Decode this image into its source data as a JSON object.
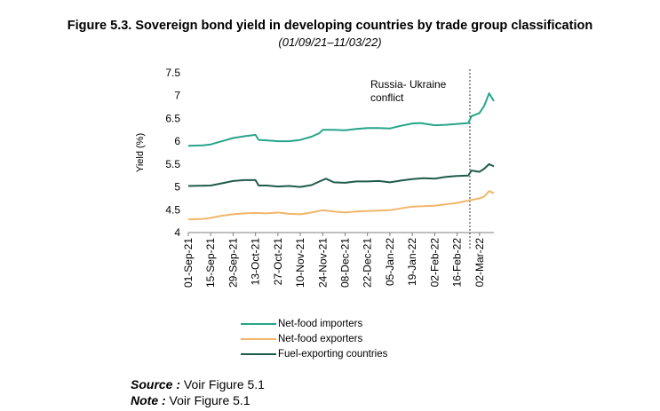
{
  "figure": {
    "title": "Figure 5.3.   Sovereign bond yield in developing countries by trade group classification",
    "subtitle": "(01/09/21–11/03/22)"
  },
  "chart_data": {
    "type": "line",
    "ylabel": "Yield (%)",
    "ylim": [
      4,
      7.5
    ],
    "yticks": [
      "4",
      "4.5",
      "5",
      "5.5",
      "6",
      "6.5",
      "7",
      "7.5"
    ],
    "xlim": [
      "2021-09-01",
      "2022-03-11"
    ],
    "xtick_labels": [
      "01-Sep-21",
      "15-Sep-21",
      "29-Sep-21",
      "13-Oct-21",
      "27-Oct-21",
      "10-Nov-21",
      "24-Nov-21",
      "08-Dec-21",
      "22-Dec-21",
      "05-Jan-22",
      "19-Jan-22",
      "02-Feb-22",
      "16-Feb-22",
      "02-Mar-22"
    ],
    "annotation": {
      "text": "Russia- Ukraine conflict",
      "line1": "Russia- Ukraine",
      "line2": "conflict",
      "x": "2022-02-24",
      "style": "dotted"
    },
    "legend_position": "bottom",
    "series": [
      {
        "name": "Net-food importers",
        "color": "#26a48a",
        "points": [
          [
            "2021-09-01",
            5.9
          ],
          [
            "2021-09-10",
            5.91
          ],
          [
            "2021-09-15",
            5.93
          ],
          [
            "2021-09-22",
            6.0
          ],
          [
            "2021-09-29",
            6.07
          ],
          [
            "2021-10-06",
            6.11
          ],
          [
            "2021-10-13",
            6.14
          ],
          [
            "2021-10-15",
            6.03
          ],
          [
            "2021-10-20",
            6.02
          ],
          [
            "2021-10-27",
            6.0
          ],
          [
            "2021-11-03",
            6.0
          ],
          [
            "2021-11-10",
            6.03
          ],
          [
            "2021-11-17",
            6.1
          ],
          [
            "2021-11-22",
            6.18
          ],
          [
            "2021-11-24",
            6.25
          ],
          [
            "2021-12-01",
            6.25
          ],
          [
            "2021-12-08",
            6.24
          ],
          [
            "2021-12-15",
            6.27
          ],
          [
            "2021-12-22",
            6.29
          ],
          [
            "2021-12-29",
            6.29
          ],
          [
            "2022-01-05",
            6.28
          ],
          [
            "2022-01-12",
            6.34
          ],
          [
            "2022-01-19",
            6.39
          ],
          [
            "2022-01-24",
            6.4
          ],
          [
            "2022-02-02",
            6.35
          ],
          [
            "2022-02-09",
            6.36
          ],
          [
            "2022-02-16",
            6.38
          ],
          [
            "2022-02-23",
            6.4
          ],
          [
            "2022-02-25",
            6.55
          ],
          [
            "2022-03-02",
            6.62
          ],
          [
            "2022-03-05",
            6.78
          ],
          [
            "2022-03-08",
            7.05
          ],
          [
            "2022-03-11",
            6.88
          ]
        ]
      },
      {
        "name": "Net-food exporters",
        "color": "#f2b66b",
        "points": [
          [
            "2021-09-01",
            4.29
          ],
          [
            "2021-09-10",
            4.3
          ],
          [
            "2021-09-15",
            4.32
          ],
          [
            "2021-09-22",
            4.37
          ],
          [
            "2021-09-29",
            4.4
          ],
          [
            "2021-10-06",
            4.42
          ],
          [
            "2021-10-13",
            4.43
          ],
          [
            "2021-10-20",
            4.42
          ],
          [
            "2021-10-27",
            4.44
          ],
          [
            "2021-11-03",
            4.41
          ],
          [
            "2021-11-10",
            4.4
          ],
          [
            "2021-11-17",
            4.44
          ],
          [
            "2021-11-24",
            4.49
          ],
          [
            "2021-12-01",
            4.46
          ],
          [
            "2021-12-08",
            4.44
          ],
          [
            "2021-12-15",
            4.46
          ],
          [
            "2021-12-22",
            4.47
          ],
          [
            "2021-12-29",
            4.48
          ],
          [
            "2022-01-05",
            4.49
          ],
          [
            "2022-01-12",
            4.53
          ],
          [
            "2022-01-19",
            4.57
          ],
          [
            "2022-01-26",
            4.58
          ],
          [
            "2022-02-02",
            4.59
          ],
          [
            "2022-02-09",
            4.62
          ],
          [
            "2022-02-16",
            4.65
          ],
          [
            "2022-02-23",
            4.7
          ],
          [
            "2022-03-02",
            4.75
          ],
          [
            "2022-03-05",
            4.79
          ],
          [
            "2022-03-08",
            4.91
          ],
          [
            "2022-03-11",
            4.86
          ]
        ]
      },
      {
        "name": "Fuel-exporting countries",
        "color": "#1f5b4c",
        "points": [
          [
            "2021-09-01",
            5.02
          ],
          [
            "2021-09-15",
            5.03
          ],
          [
            "2021-09-22",
            5.08
          ],
          [
            "2021-09-29",
            5.13
          ],
          [
            "2021-10-06",
            5.15
          ],
          [
            "2021-10-13",
            5.15
          ],
          [
            "2021-10-15",
            5.03
          ],
          [
            "2021-10-20",
            5.03
          ],
          [
            "2021-10-27",
            5.01
          ],
          [
            "2021-11-03",
            5.02
          ],
          [
            "2021-11-10",
            5.0
          ],
          [
            "2021-11-17",
            5.04
          ],
          [
            "2021-11-22",
            5.12
          ],
          [
            "2021-11-26",
            5.18
          ],
          [
            "2021-12-01",
            5.1
          ],
          [
            "2021-12-08",
            5.09
          ],
          [
            "2021-12-15",
            5.12
          ],
          [
            "2021-12-22",
            5.12
          ],
          [
            "2021-12-29",
            5.13
          ],
          [
            "2022-01-05",
            5.1
          ],
          [
            "2022-01-12",
            5.14
          ],
          [
            "2022-01-19",
            5.17
          ],
          [
            "2022-01-26",
            5.19
          ],
          [
            "2022-02-02",
            5.18
          ],
          [
            "2022-02-09",
            5.22
          ],
          [
            "2022-02-16",
            5.24
          ],
          [
            "2022-02-23",
            5.25
          ],
          [
            "2022-02-25",
            5.36
          ],
          [
            "2022-03-02",
            5.33
          ],
          [
            "2022-03-05",
            5.4
          ],
          [
            "2022-03-08",
            5.5
          ],
          [
            "2022-03-11",
            5.45
          ]
        ]
      }
    ]
  },
  "notes": {
    "source_label": "Source :",
    "source_text": " Voir Figure 5.1",
    "note_label": "Note :",
    "note_text": " Voir Figure 5.1"
  }
}
